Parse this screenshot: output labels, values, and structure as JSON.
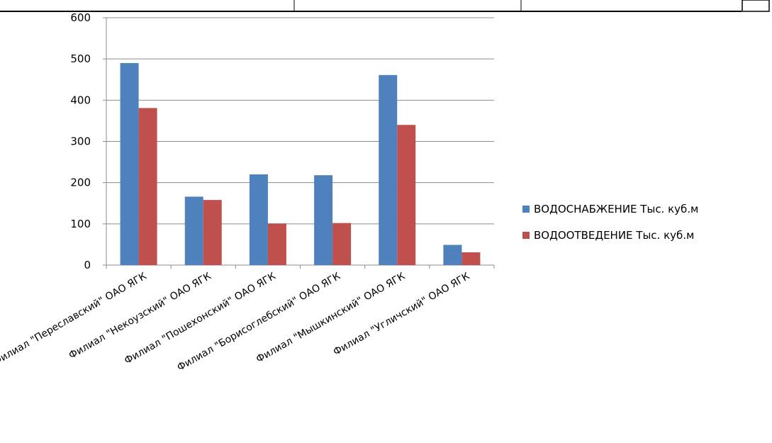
{
  "chart_data": {
    "type": "bar",
    "categories": [
      "Филиал \"Переславский\" ОАО ЯГК",
      "Филиал \"Некоузский\" ОАО ЯГК",
      "Филиал \"Пошехонский\" ОАО ЯГК",
      "Филиал \"Борисоглебский\" ОАО ЯГК",
      "Филиал \"Мышкинский\" ОАО ЯГК",
      "Филиал \"Угличский\" ОАО ЯГК"
    ],
    "series": [
      {
        "name": "ВОДОСНАБЖЕНИЕ Тыс. куб.м",
        "values": [
          490,
          166,
          220,
          218,
          461,
          49
        ]
      },
      {
        "name": "ВОДООТВЕДЕНИЕ Тыс. куб.м",
        "values": [
          381,
          158,
          101,
          102,
          340,
          31
        ]
      }
    ],
    "title": "",
    "xlabel": "",
    "ylabel": "",
    "ylim": [
      0,
      600
    ],
    "yticks": [
      0,
      100,
      200,
      300,
      400,
      500,
      600
    ],
    "grid": true,
    "legend_position": "right",
    "colors": [
      "#4f81bd",
      "#c0504d"
    ]
  }
}
